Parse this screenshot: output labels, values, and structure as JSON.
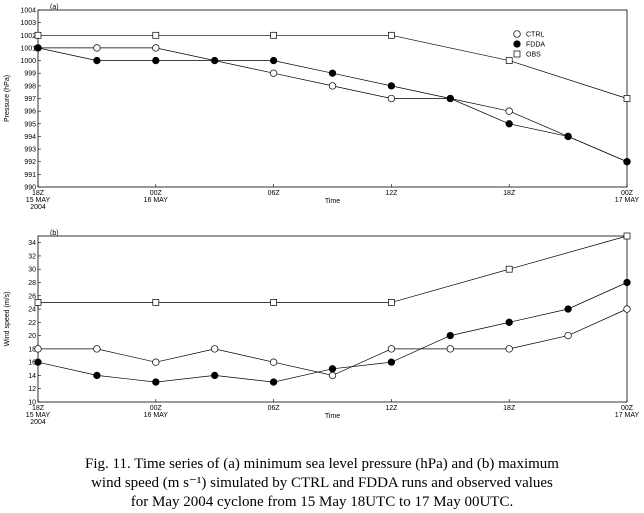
{
  "chart_data": [
    {
      "type": "line",
      "panel_label": "(a)",
      "ylabel": "Pressure (hPa)",
      "xlabel": "Time",
      "ylim": [
        990,
        1004
      ],
      "yticks": [
        990,
        991,
        992,
        993,
        994,
        995,
        996,
        997,
        998,
        999,
        1000,
        1001,
        1002,
        1003,
        1004
      ],
      "xlim": [
        0,
        30
      ],
      "xticks": [
        {
          "x": 0,
          "lines": [
            "18Z",
            "15 MAY",
            "2004"
          ]
        },
        {
          "x": 6,
          "lines": [
            "00Z",
            "16 MAY"
          ]
        },
        {
          "x": 12,
          "lines": [
            "06Z"
          ]
        },
        {
          "x": 18,
          "lines": [
            "12Z"
          ]
        },
        {
          "x": 24,
          "lines": [
            "18Z"
          ]
        },
        {
          "x": 30,
          "lines": [
            "00Z",
            "17 MAY"
          ]
        }
      ],
      "legend_position": "top-right",
      "series": [
        {
          "name": "CTRL",
          "marker": "open-circle",
          "x": [
            0,
            3,
            6,
            12,
            15,
            18,
            21,
            24,
            27,
            30
          ],
          "y": [
            1001,
            1001,
            1001,
            999,
            998,
            997,
            997,
            996,
            994,
            992
          ]
        },
        {
          "name": "FDDA",
          "marker": "filled-circle",
          "x": [
            0,
            3,
            6,
            9,
            12,
            15,
            18,
            21,
            24,
            27,
            30
          ],
          "y": [
            1001,
            1000,
            1000,
            1000,
            1000,
            999,
            998,
            997,
            995,
            994,
            992
          ]
        },
        {
          "name": "OBS",
          "marker": "open-square",
          "x": [
            0,
            6,
            12,
            18,
            24,
            30
          ],
          "y": [
            1002,
            1002,
            1002,
            1002,
            1000,
            997
          ]
        }
      ]
    },
    {
      "type": "line",
      "panel_label": "(b)",
      "ylabel": "Wind speed (m/s)",
      "xlabel": "Time",
      "ylim": [
        10,
        35
      ],
      "yticks": [
        10,
        12,
        14,
        16,
        18,
        20,
        22,
        24,
        26,
        28,
        30,
        32,
        34
      ],
      "xlim": [
        0,
        30
      ],
      "xticks": [
        {
          "x": 0,
          "lines": [
            "18Z",
            "15 MAY",
            "2004"
          ]
        },
        {
          "x": 6,
          "lines": [
            "00Z",
            "16 MAY"
          ]
        },
        {
          "x": 12,
          "lines": [
            "06Z"
          ]
        },
        {
          "x": 18,
          "lines": [
            "12Z"
          ]
        },
        {
          "x": 24,
          "lines": [
            "18Z"
          ]
        },
        {
          "x": 30,
          "lines": [
            "00Z",
            "17 MAY"
          ]
        }
      ],
      "series": [
        {
          "name": "CTRL",
          "marker": "open-circle",
          "x": [
            0,
            3,
            6,
            9,
            12,
            15,
            18,
            21,
            24,
            27,
            30
          ],
          "y": [
            18,
            18,
            16,
            18,
            16,
            14,
            18,
            18,
            18,
            20,
            24
          ]
        },
        {
          "name": "FDDA",
          "marker": "filled-circle",
          "x": [
            0,
            3,
            6,
            9,
            12,
            15,
            18,
            21,
            24,
            27,
            30
          ],
          "y": [
            16,
            14,
            13,
            14,
            13,
            15,
            16,
            20,
            22,
            24,
            28
          ]
        },
        {
          "name": "OBS",
          "marker": "open-square",
          "x": [
            0,
            6,
            12,
            18,
            24,
            30
          ],
          "y": [
            25,
            25,
            25,
            25,
            30,
            35
          ]
        }
      ]
    }
  ],
  "caption": {
    "lines": [
      "Fig. 11. Time series of (a) minimum sea level pressure (hPa) and (b) maximum",
      "wind speed (m s⁻¹) simulated by CTRL and FDDA runs and observed values",
      "for May 2004 cyclone from 15 May 18UTC to 17 May 00UTC."
    ]
  }
}
